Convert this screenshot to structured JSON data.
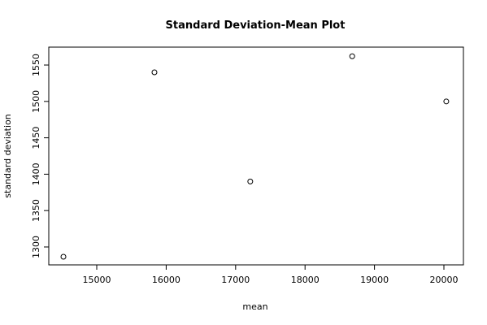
{
  "chart_data": {
    "type": "scatter",
    "title": "Standard Deviation-Mean Plot",
    "x_label": "mean",
    "y_label": "standard deviation",
    "x": [
      14520,
      15831,
      17211,
      18679,
      20034
    ],
    "values": [
      1286.6,
      1540,
      1390,
      1562,
      1500
    ],
    "color": "#000000",
    "xlim": [
      14309,
      20281
    ],
    "xticks": [
      15000,
      16000,
      17000,
      18000,
      19000,
      20000
    ],
    "ylim": [
      1275.4,
      1574.6
    ],
    "yticks": [
      1300,
      1350,
      1400,
      1450,
      1500,
      1550
    ],
    "grid": false
  }
}
